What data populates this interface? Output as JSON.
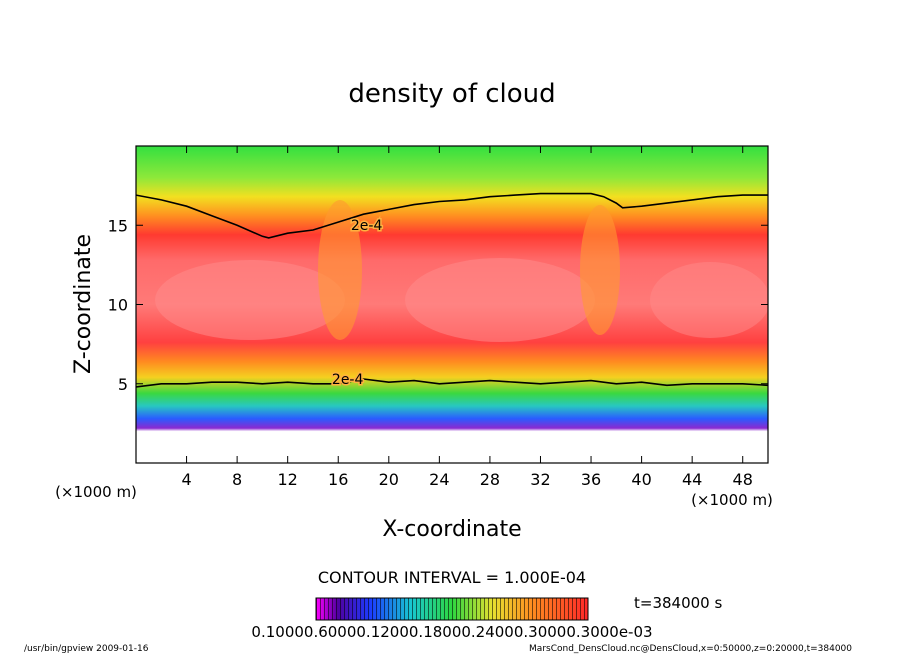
{
  "chart_data": {
    "type": "heatmap",
    "title": "density of cloud",
    "xlabel": "X-coordinate",
    "ylabel": "Z-coordinate",
    "x_unit_left": "(×1000 m)",
    "x_unit_right": "(×1000 m)",
    "xlim": [
      0,
      50
    ],
    "ylim": [
      0,
      20
    ],
    "x_ticks": [
      4,
      8,
      12,
      16,
      20,
      24,
      28,
      32,
      36,
      40,
      44,
      48
    ],
    "x_tick_labels": [
      "4",
      "8",
      "12",
      "16",
      "20",
      "24",
      "28",
      "32",
      "36",
      "40",
      "44",
      "48"
    ],
    "y_ticks": [
      5,
      10,
      15
    ],
    "y_tick_labels": [
      "5",
      "10",
      "15"
    ],
    "contour_interval_text": "CONTOUR INTERVAL = 1.000E-04",
    "contour_label": "2e-4",
    "contour_labels": [
      {
        "x": 17.0,
        "z": 14.7,
        "text": "2e-4"
      },
      {
        "x": 15.5,
        "z": 5.0,
        "text": "2e-4"
      }
    ],
    "upper_contour": {
      "x": [
        0,
        2,
        4,
        6,
        8,
        10,
        10.5,
        12,
        14,
        16,
        18,
        20,
        22,
        24,
        26,
        28,
        30,
        32,
        34,
        36,
        37,
        38,
        38.5,
        40,
        42,
        44,
        46,
        48,
        50
      ],
      "z": [
        16.9,
        16.6,
        16.2,
        15.6,
        15.0,
        14.3,
        14.2,
        14.5,
        14.7,
        15.2,
        15.7,
        16.0,
        16.3,
        16.5,
        16.6,
        16.8,
        16.9,
        17.0,
        17.0,
        17.0,
        16.8,
        16.4,
        16.1,
        16.2,
        16.4,
        16.6,
        16.8,
        16.9,
        16.9
      ]
    },
    "lower_contour": {
      "x": [
        0,
        2,
        4,
        6,
        8,
        10,
        12,
        14,
        16,
        18,
        20,
        22,
        24,
        26,
        28,
        30,
        32,
        34,
        36,
        38,
        40,
        42,
        44,
        46,
        48,
        50
      ],
      "z": [
        4.8,
        5.0,
        5.0,
        5.1,
        5.1,
        5.0,
        5.1,
        5.0,
        5.0,
        5.3,
        5.1,
        5.2,
        5.0,
        5.1,
        5.2,
        5.1,
        5.0,
        5.1,
        5.2,
        5.0,
        5.1,
        4.9,
        5.0,
        5.0,
        5.0,
        4.9
      ]
    },
    "colorbar_labels": [
      "0.1000",
      "0.6000",
      "0.1200",
      "0.1800",
      "0.2400",
      "0.3000",
      "0.3000e-03"
    ],
    "time_label": "t=384000 s"
  },
  "footer": {
    "left": "/usr/bin/gpview  2009-01-16",
    "right": "MarsCond_DensCloud.nc@DensCloud,x=0:50000,z=0:20000,t=384000"
  },
  "colors": {
    "background_top": "#22d62a",
    "band_yellow": "#f2e020",
    "band_orange": "#ff8a1a",
    "band_red": "#ff3030",
    "band_pink": "#ff7a7a",
    "band_blue": "#2a5cff",
    "band_violet": "#8a2ad0",
    "contour": "#000000"
  }
}
